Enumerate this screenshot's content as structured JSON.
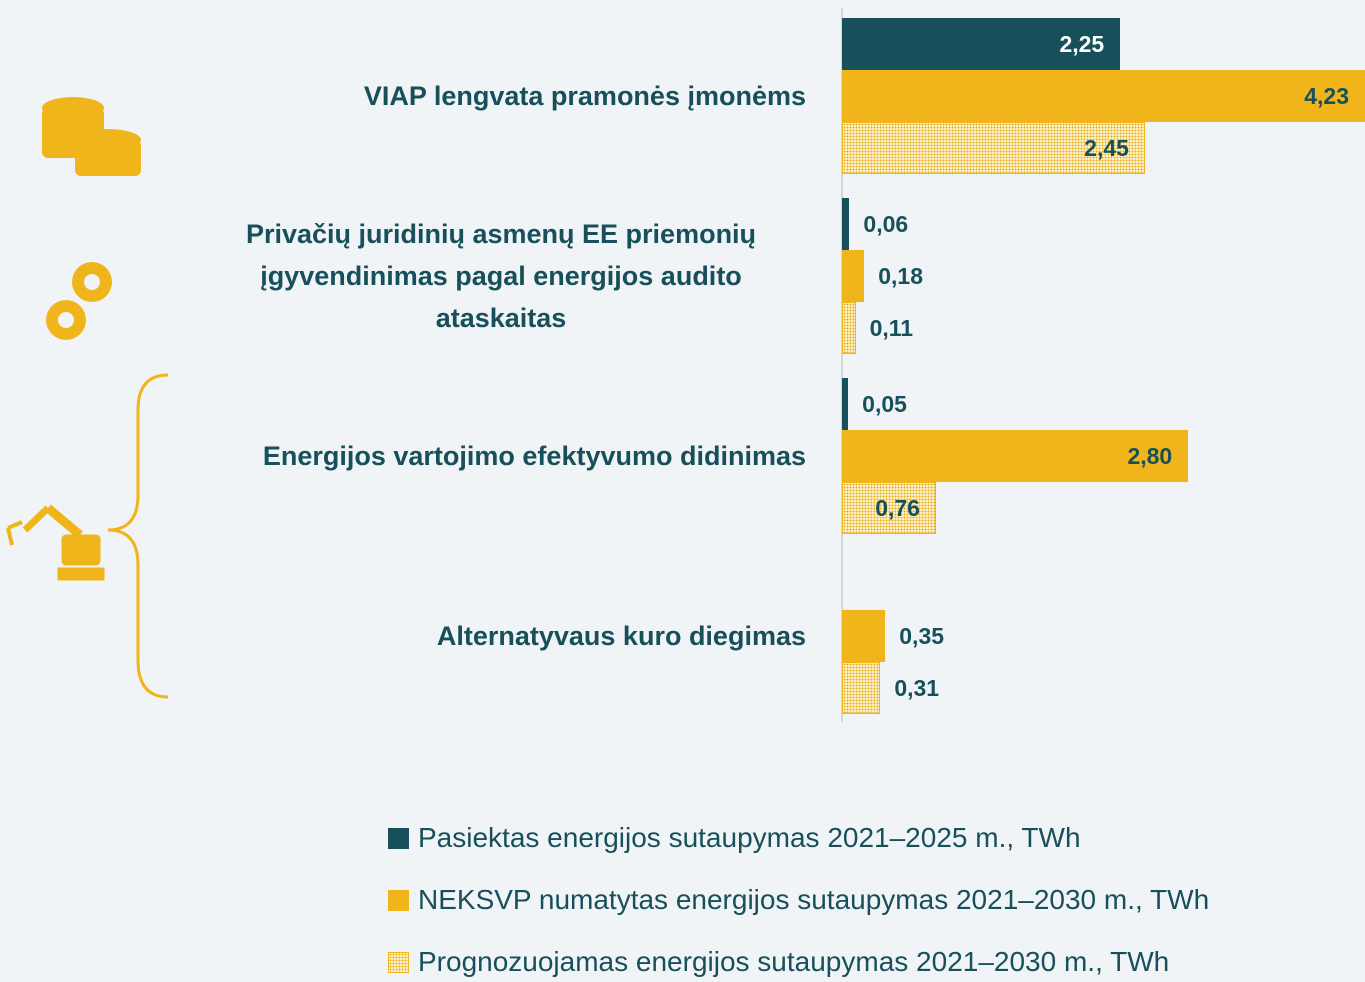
{
  "chart_data": {
    "type": "bar",
    "orientation": "horizontal",
    "categories": [
      "VIAP lengvata pramonės įmonėms",
      "Privačių juridinių asmenų EE priemonių įgyvendinimas pagal energijos audito ataskaitas",
      "Energijos vartojimo efektyvumo didinimas",
      "Alternatyvaus kuro diegimas"
    ],
    "series": [
      {
        "name": "Pasiektas energijos sutaupymas 2021–2025 m., TWh",
        "color": "#17505a",
        "values": [
          2.25,
          0.06,
          0.05,
          null
        ],
        "value_labels": [
          "2,25",
          "0,06",
          "0,05",
          null
        ]
      },
      {
        "name": "NEKSVP numatytas energijos sutaupymas 2021–2030 m., TWh",
        "color": "#f0b51b",
        "values": [
          4.23,
          0.18,
          2.8,
          0.35
        ],
        "value_labels": [
          "4,23",
          "0,18",
          "2,80",
          "0,35"
        ]
      },
      {
        "name": "Prognozuojamas energijos sutaupymas 2021–2030 m., TWh",
        "color": "#f0b51b",
        "pattern": "dotted",
        "values": [
          2.45,
          0.11,
          0.76,
          0.31
        ],
        "value_labels": [
          "2,45",
          "0,11",
          "0,76",
          "0,31"
        ]
      }
    ]
  }
}
